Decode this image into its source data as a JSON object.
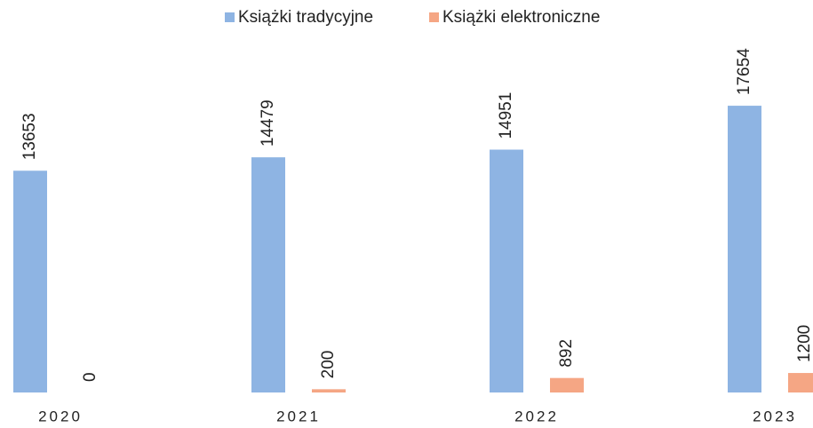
{
  "chart_data": {
    "type": "bar",
    "categories": [
      "2020",
      "2021",
      "2022",
      "2023"
    ],
    "series": [
      {
        "name": "Książki tradycyjne",
        "color": "#8eb4e3",
        "values": [
          13653,
          14479,
          14951,
          17654
        ]
      },
      {
        "name": "Książki elektroniczne",
        "color": "#f5a684",
        "values": [
          0,
          200,
          892,
          1200
        ]
      }
    ],
    "ylim": [
      0,
      24000
    ],
    "legend": "top"
  }
}
